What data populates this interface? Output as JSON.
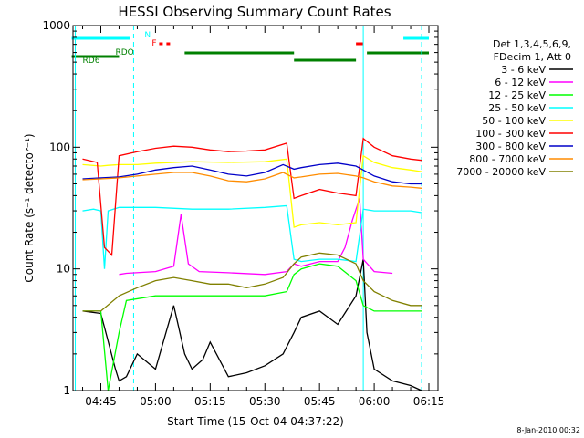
{
  "chart_data": {
    "type": "line",
    "title": "HESSI Observing Summary Count Rates",
    "xlabel": "Start Time (15-Oct-04 04:37:22)",
    "ylabel": "Count Rate (s⁻¹ detector⁻¹)",
    "y_scale": "log",
    "ylim": [
      1,
      1000
    ],
    "xlim": [
      "04:37:22",
      "06:17:30"
    ],
    "x_ticks": [
      "04:45",
      "05:00",
      "05:15",
      "05:30",
      "05:45",
      "06:00",
      "06:15"
    ],
    "y_ticks": [
      "1",
      "10",
      "100",
      "1000"
    ],
    "grid": false,
    "legend_position": "right",
    "legend_header": [
      "Det 1,3,4,5,6,9,",
      "FDecim 1, Att 0"
    ],
    "footer_date": "8-Jan-2010 00:32",
    "flags": [
      {
        "label": "N",
        "color": "#00ffff",
        "segments": [
          [
            "04:37",
            "04:53"
          ],
          [
            "06:08",
            "06:15"
          ]
        ]
      },
      {
        "label": "F",
        "color": "#ff0000",
        "segments": [
          [
            "05:01",
            "05:02"
          ],
          [
            "05:03",
            "05:04"
          ],
          [
            "05:55",
            "05:57"
          ]
        ]
      },
      {
        "label": "RDO",
        "color": "#008000",
        "segments": [
          [
            "05:08",
            "05:38"
          ],
          [
            "05:38",
            "05:55"
          ],
          [
            "05:58",
            "06:15"
          ]
        ]
      },
      {
        "label": "RD6",
        "color": "#008000",
        "segments": [
          [
            "04:37",
            "04:50"
          ]
        ]
      }
    ],
    "orbit_markers": [
      {
        "time": "04:38",
        "style": "solid"
      },
      {
        "time": "04:54",
        "style": "dashed"
      },
      {
        "time": "05:57",
        "style": "solid"
      },
      {
        "time": "06:13",
        "style": "dashed"
      }
    ],
    "series": [
      {
        "name": "3 - 6 keV",
        "color": "#000000",
        "times": [
          "04:40",
          "04:45",
          "04:49",
          "04:50",
          "04:52",
          "04:55",
          "05:00",
          "05:05",
          "05:08",
          "05:10",
          "05:13",
          "05:15",
          "05:20",
          "05:25",
          "05:30",
          "05:35",
          "05:38",
          "05:40",
          "05:45",
          "05:50",
          "05:55",
          "05:57",
          "05:58",
          "06:00",
          "06:05",
          "06:10",
          "06:13"
        ],
        "values": [
          4.5,
          4.3,
          1.5,
          1.2,
          1.3,
          2.0,
          1.5,
          5.0,
          2.0,
          1.5,
          1.8,
          2.5,
          1.3,
          1.4,
          1.6,
          2.0,
          3.0,
          4.0,
          4.5,
          3.5,
          6.0,
          12.0,
          3.0,
          1.5,
          1.2,
          1.1,
          1.0
        ]
      },
      {
        "name": "6 - 12 keV",
        "color": "#ff00ff",
        "times": [
          "04:50",
          "04:52",
          "05:00",
          "05:05",
          "05:07",
          "05:09",
          "05:12",
          "05:20",
          "05:30",
          "05:36",
          "05:38",
          "05:40",
          "05:45",
          "05:50",
          "05:52",
          "05:54",
          "05:56",
          "05:57",
          "06:00",
          "06:05"
        ],
        "values": [
          9.0,
          9.2,
          9.5,
          10.5,
          28.0,
          11.0,
          9.5,
          9.3,
          9.0,
          9.5,
          11.0,
          10.5,
          11.5,
          11.5,
          15.0,
          25.0,
          38.0,
          12.0,
          9.5,
          9.2
        ]
      },
      {
        "name": "12 - 25 keV",
        "color": "#00ff00",
        "times": [
          "04:40",
          "04:45",
          "04:47",
          "04:50",
          "04:52",
          "05:00",
          "05:10",
          "05:20",
          "05:30",
          "05:36",
          "05:38",
          "05:40",
          "05:45",
          "05:50",
          "05:55",
          "05:57",
          "06:00",
          "06:05",
          "06:10",
          "06:13"
        ],
        "values": [
          4.5,
          4.5,
          1.0,
          3.0,
          5.5,
          6.0,
          6.0,
          6.0,
          6.0,
          6.5,
          9.0,
          10.0,
          11.0,
          10.5,
          8.0,
          5.0,
          4.5,
          4.5,
          4.5,
          4.5
        ]
      },
      {
        "name": "25 - 50 keV",
        "color": "#00ffff",
        "times": [
          "04:40",
          "04:43",
          "04:45",
          "04:46",
          "04:47",
          "04:50",
          "04:55",
          "05:00",
          "05:10",
          "05:20",
          "05:30",
          "05:36",
          "05:38",
          "05:40",
          "05:45",
          "05:50",
          "05:55",
          "05:57",
          "06:00",
          "06:05",
          "06:10",
          "06:13"
        ],
        "values": [
          30.0,
          31.0,
          30.0,
          10.0,
          30.0,
          32.0,
          32.0,
          32.0,
          31.0,
          31.0,
          32.0,
          33.0,
          12.0,
          11.5,
          12.0,
          12.0,
          11.5,
          31.0,
          30.0,
          30.0,
          30.0,
          29.0
        ]
      },
      {
        "name": "50 - 100 keV",
        "color": "#ffff00",
        "times": [
          "04:40",
          "04:45",
          "04:47",
          "04:50",
          "04:55",
          "05:00",
          "05:10",
          "05:20",
          "05:30",
          "05:36",
          "05:38",
          "05:40",
          "05:45",
          "05:50",
          "05:55",
          "05:57",
          "06:00",
          "06:05",
          "06:10",
          "06:13"
        ],
        "values": [
          72.0,
          70.0,
          71.0,
          72.0,
          72.0,
          74.0,
          76.0,
          75.0,
          76.0,
          80.0,
          22.0,
          23.0,
          24.0,
          23.0,
          24.0,
          85.0,
          75.0,
          68.0,
          65.0,
          63.0
        ]
      },
      {
        "name": "100 - 300 keV",
        "color": "#ff0000",
        "times": [
          "04:40",
          "04:44",
          "04:46",
          "04:48",
          "04:50",
          "04:55",
          "05:00",
          "05:05",
          "05:10",
          "05:15",
          "05:20",
          "05:25",
          "05:30",
          "05:36",
          "05:38",
          "05:40",
          "05:45",
          "05:50",
          "05:55",
          "05:57",
          "06:00",
          "06:05",
          "06:10",
          "06:13"
        ],
        "values": [
          80.0,
          75.0,
          15.0,
          13.0,
          85.0,
          92.0,
          98.0,
          102.0,
          100.0,
          95.0,
          92.0,
          93.0,
          95.0,
          108.0,
          38.0,
          40.0,
          45.0,
          42.0,
          40.0,
          118.0,
          100.0,
          85.0,
          80.0,
          78.0
        ]
      },
      {
        "name": "300 - 800 keV",
        "color": "#0000c8",
        "times": [
          "04:40",
          "04:45",
          "04:50",
          "04:55",
          "05:00",
          "05:05",
          "05:10",
          "05:15",
          "05:20",
          "05:25",
          "05:30",
          "05:35",
          "05:38",
          "05:40",
          "05:45",
          "05:50",
          "05:55",
          "05:57",
          "06:00",
          "06:05",
          "06:10",
          "06:13"
        ],
        "values": [
          55.0,
          56.0,
          57.0,
          60.0,
          65.0,
          68.0,
          70.0,
          65.0,
          60.0,
          58.0,
          62.0,
          72.0,
          66.0,
          68.0,
          72.0,
          74.0,
          70.0,
          65.0,
          58.0,
          52.0,
          50.0,
          50.0
        ]
      },
      {
        "name": "800 - 7000 keV",
        "color": "#ff8c00",
        "times": [
          "04:40",
          "04:45",
          "04:50",
          "04:55",
          "05:00",
          "05:05",
          "05:10",
          "05:15",
          "05:20",
          "05:25",
          "05:30",
          "05:35",
          "05:38",
          "05:40",
          "05:45",
          "05:50",
          "05:55",
          "05:57",
          "06:00",
          "06:05",
          "06:10",
          "06:13"
        ],
        "values": [
          54.0,
          55.0,
          56.0,
          58.0,
          60.0,
          62.0,
          62.0,
          58.0,
          53.0,
          52.0,
          55.0,
          62.0,
          56.0,
          57.0,
          60.0,
          61.0,
          58.0,
          56.0,
          52.0,
          48.0,
          47.0,
          46.0
        ]
      },
      {
        "name": "7000 - 20000 keV",
        "color": "#808000",
        "times": [
          "04:40",
          "04:45",
          "04:50",
          "04:55",
          "05:00",
          "05:05",
          "05:10",
          "05:15",
          "05:20",
          "05:25",
          "05:30",
          "05:35",
          "05:38",
          "05:40",
          "05:45",
          "05:50",
          "05:55",
          "05:57",
          "06:00",
          "06:05",
          "06:10",
          "06:13"
        ],
        "values": [
          4.5,
          4.5,
          6.0,
          7.0,
          8.0,
          8.5,
          8.0,
          7.5,
          7.5,
          7.0,
          7.5,
          8.5,
          11.0,
          12.5,
          13.5,
          13.0,
          11.0,
          8.0,
          6.5,
          5.5,
          5.0,
          5.0
        ]
      }
    ]
  }
}
